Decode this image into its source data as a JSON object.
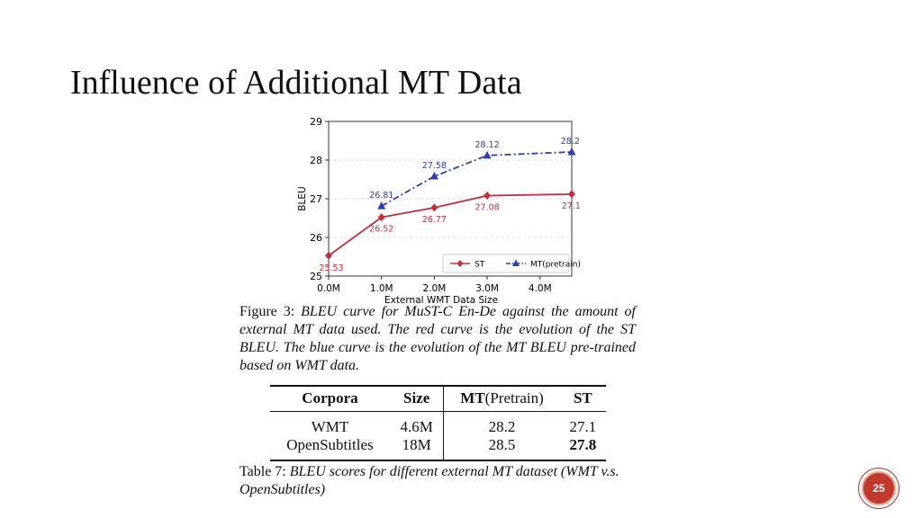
{
  "slide": {
    "title": "Influence of Additional MT Data",
    "page_number": "25"
  },
  "chart_data": {
    "type": "line",
    "xlabel": "External WMT Data Size",
    "ylabel": "BLEU",
    "x": [
      0,
      1,
      2,
      3,
      4
    ],
    "x_tick_labels": [
      "0.0M",
      "1.0M",
      "2.0M",
      "3.0M",
      "4.0M"
    ],
    "xlim": [
      0,
      4.6
    ],
    "ylim": [
      25,
      29
    ],
    "y_ticks": [
      25,
      26,
      27,
      28,
      29
    ],
    "grid": "horizontal dashed",
    "legend_position": "lower-right",
    "series": [
      {
        "name": "ST",
        "color": "#c0303c",
        "marker": "diamond",
        "line_style": "solid",
        "x": [
          0,
          1,
          2,
          3,
          4.6
        ],
        "values": [
          25.53,
          26.52,
          26.77,
          27.08,
          27.12
        ],
        "labels": [
          "25.53",
          "26.52",
          "26.77",
          "27.08",
          "27.12"
        ]
      },
      {
        "name": "MT(pretrain)",
        "color": "#2b3fb0",
        "marker": "triangle",
        "line_style": "dashdot",
        "x": [
          1,
          2,
          3,
          4.6
        ],
        "values": [
          26.81,
          27.58,
          28.12,
          28.21
        ],
        "labels": [
          "26.81",
          "27.58",
          "28.12",
          "28.21"
        ]
      }
    ]
  },
  "figure_caption": {
    "label": "Figure 3:",
    "text": "BLEU curve for MuST-C En-De against the amount of external MT data used.  The red curve is the evolution of the ST BLEU. The blue curve is the evolution of the MT BLEU pre-trained based on WMT data."
  },
  "table": {
    "headers": {
      "corpora": "Corpora",
      "size": "Size",
      "mt_bold": "MT",
      "mt_rest": "(Pretrain)",
      "st": "ST"
    },
    "rows": [
      {
        "corpora": "WMT",
        "size": "4.6M",
        "mt": "28.2",
        "st": "27.1"
      },
      {
        "corpora": "OpenSubtitles",
        "size": "18M",
        "mt": "28.5",
        "st": "27.8"
      }
    ]
  },
  "table_caption": {
    "label": "Table 7:",
    "text": "BLEU scores for different external MT dataset (WMT v.s. OpenSubtitles)"
  }
}
